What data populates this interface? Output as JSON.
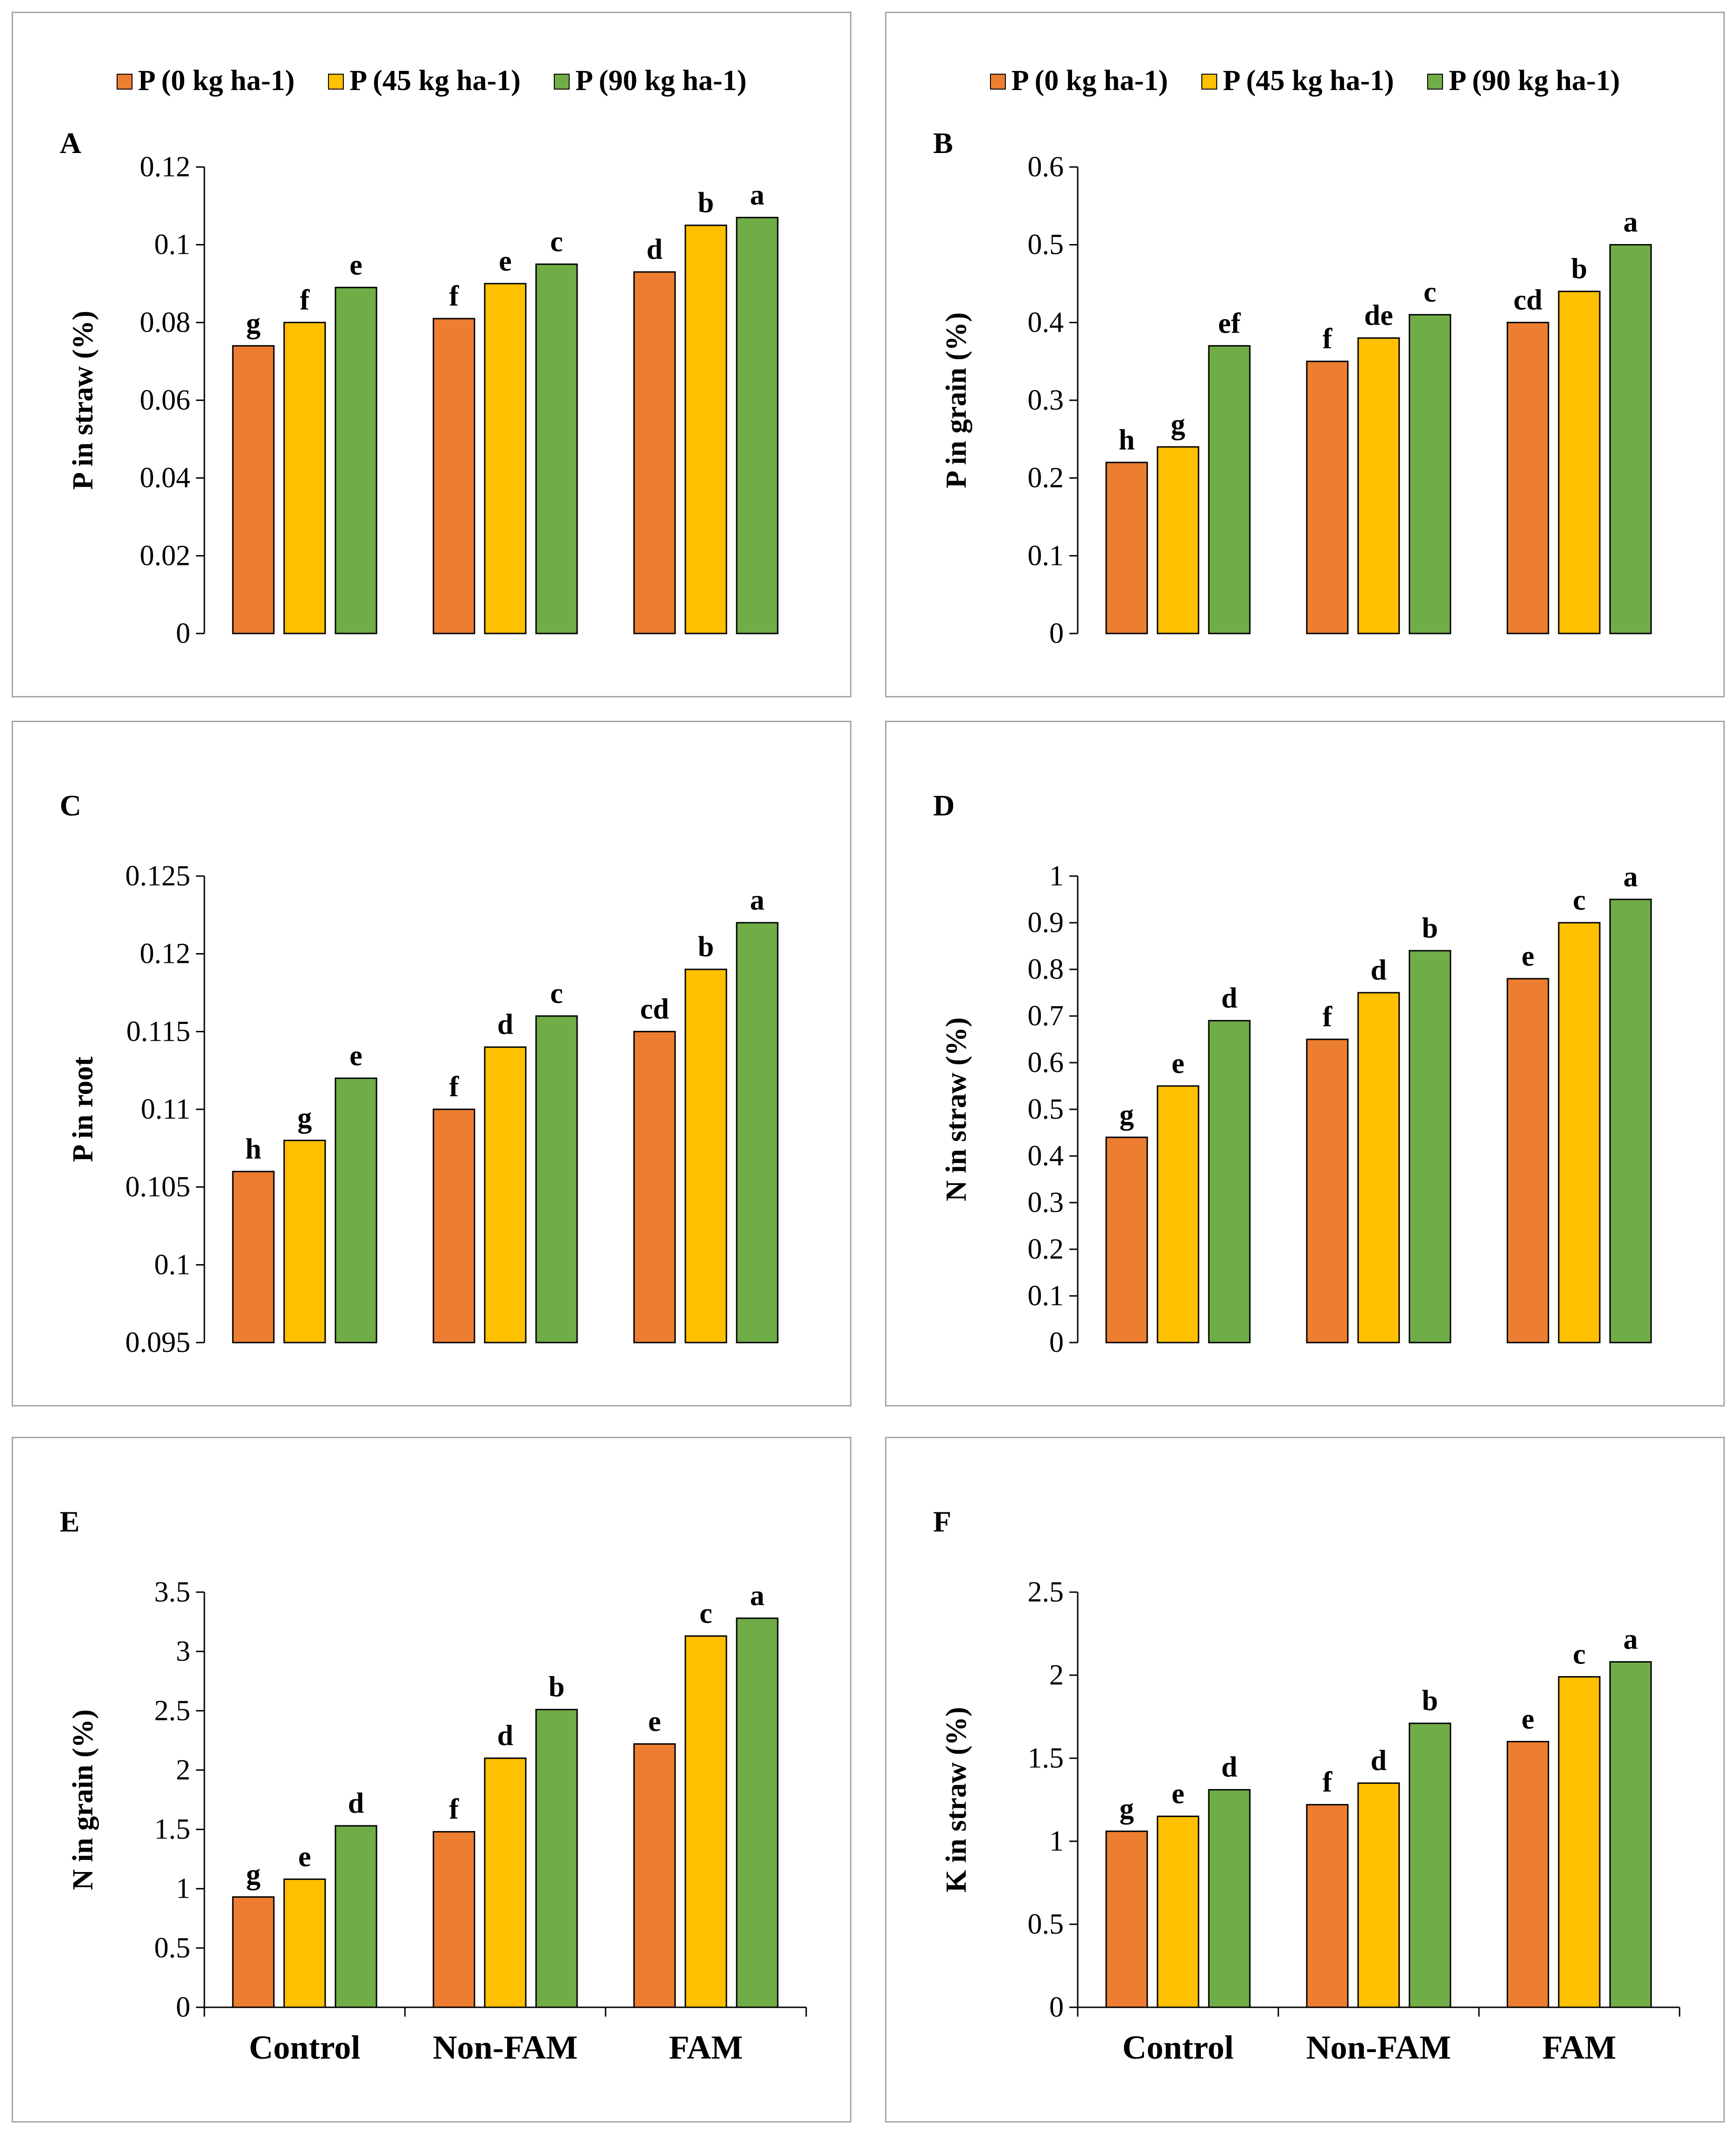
{
  "colors": {
    "p0": "#ED7D31",
    "p45": "#FFC000",
    "p90": "#70AD47"
  },
  "legend": [
    "P (0 kg ha-1)",
    "P (45 kg ha-1)",
    "P (90 kg ha-1)"
  ],
  "chart_data": [
    {
      "panel": "A",
      "type": "bar",
      "ylabel": "P in straw (%)",
      "ylim": [
        0,
        0.12
      ],
      "yticks": [
        "0",
        "0.02",
        "0.04",
        "0.06",
        "0.08",
        "0.1",
        "0.12"
      ],
      "categories": [
        "Control",
        "Non-FAM",
        "FAM"
      ],
      "show_categories": false,
      "show_legend": true,
      "series": [
        {
          "name": "P (0 kg ha-1)",
          "values": [
            0.074,
            0.081,
            0.093
          ],
          "letters": [
            "g",
            "f",
            "d"
          ]
        },
        {
          "name": "P (45 kg ha-1)",
          "values": [
            0.08,
            0.09,
            0.105
          ],
          "letters": [
            "f",
            "e",
            "b"
          ]
        },
        {
          "name": "P (90 kg ha-1)",
          "values": [
            0.089,
            0.095,
            0.107
          ],
          "letters": [
            "e",
            "c",
            "a"
          ]
        }
      ]
    },
    {
      "panel": "B",
      "type": "bar",
      "ylabel": "P in grain (%)",
      "ylim": [
        0,
        0.6
      ],
      "yticks": [
        "0",
        "0.1",
        "0.2",
        "0.3",
        "0.4",
        "0.5",
        "0.6"
      ],
      "categories": [
        "Control",
        "Non-FAM",
        "FAM"
      ],
      "show_categories": false,
      "show_legend": true,
      "series": [
        {
          "name": "P (0 kg ha-1)",
          "values": [
            0.22,
            0.35,
            0.4
          ],
          "letters": [
            "h",
            "f",
            "cd"
          ]
        },
        {
          "name": "P (45 kg ha-1)",
          "values": [
            0.24,
            0.38,
            0.44
          ],
          "letters": [
            "g",
            "de",
            "b"
          ]
        },
        {
          "name": "P (90 kg ha-1)",
          "values": [
            0.37,
            0.41,
            0.5
          ],
          "letters": [
            "ef",
            "c",
            "a"
          ]
        }
      ]
    },
    {
      "panel": "C",
      "type": "bar",
      "ylabel": "P in root",
      "ylim": [
        0.095,
        0.125
      ],
      "yticks": [
        "0.095",
        "0.1",
        "0.105",
        "0.11",
        "0.115",
        "0.12",
        "0.125"
      ],
      "categories": [
        "Control",
        "Non-FAM",
        "FAM"
      ],
      "show_categories": false,
      "show_legend": false,
      "series": [
        {
          "name": "P (0 kg ha-1)",
          "values": [
            0.106,
            0.11,
            0.115
          ],
          "letters": [
            "h",
            "f",
            "cd"
          ]
        },
        {
          "name": "P (45 kg ha-1)",
          "values": [
            0.108,
            0.114,
            0.119
          ],
          "letters": [
            "g",
            "d",
            "b"
          ]
        },
        {
          "name": "P (90 kg ha-1)",
          "values": [
            0.112,
            0.116,
            0.122
          ],
          "letters": [
            "e",
            "c",
            "a"
          ]
        }
      ]
    },
    {
      "panel": "D",
      "type": "bar",
      "ylabel": "N in straw (%)",
      "ylim": [
        0,
        1
      ],
      "yticks": [
        "0",
        "0.1",
        "0.2",
        "0.3",
        "0.4",
        "0.5",
        "0.6",
        "0.7",
        "0.8",
        "0.9",
        "1"
      ],
      "categories": [
        "Control",
        "Non-FAM",
        "FAM"
      ],
      "show_categories": false,
      "show_legend": false,
      "series": [
        {
          "name": "P (0 kg ha-1)",
          "values": [
            0.44,
            0.65,
            0.78
          ],
          "letters": [
            "g",
            "f",
            "e"
          ]
        },
        {
          "name": "P (45 kg ha-1)",
          "values": [
            0.55,
            0.75,
            0.9
          ],
          "letters": [
            "e",
            "d",
            "c"
          ]
        },
        {
          "name": "P (90 kg ha-1)",
          "values": [
            0.69,
            0.84,
            0.95
          ],
          "letters": [
            "d",
            "b",
            "a"
          ]
        }
      ]
    },
    {
      "panel": "E",
      "type": "bar",
      "ylabel": "N in grain (%)",
      "ylim": [
        0,
        3.5
      ],
      "yticks": [
        "0",
        "0.5",
        "1",
        "1.5",
        "2",
        "2.5",
        "3",
        "3.5"
      ],
      "categories": [
        "Control",
        "Non-FAM",
        "FAM"
      ],
      "show_categories": true,
      "show_legend": false,
      "series": [
        {
          "name": "P (0 kg ha-1)",
          "values": [
            0.93,
            1.48,
            2.22
          ],
          "letters": [
            "g",
            "f",
            "e"
          ]
        },
        {
          "name": "P (45 kg ha-1)",
          "values": [
            1.08,
            2.1,
            3.13
          ],
          "letters": [
            "e",
            "d",
            "c"
          ]
        },
        {
          "name": "P (90 kg ha-1)",
          "values": [
            1.53,
            2.51,
            3.28
          ],
          "letters": [
            "d",
            "b",
            "a"
          ]
        }
      ]
    },
    {
      "panel": "F",
      "type": "bar",
      "ylabel": "K in straw (%)",
      "ylim": [
        0,
        2.5
      ],
      "yticks": [
        "0",
        "0.5",
        "1",
        "1.5",
        "2",
        "2.5"
      ],
      "categories": [
        "Control",
        "Non-FAM",
        "FAM"
      ],
      "show_categories": true,
      "show_legend": false,
      "series": [
        {
          "name": "P (0 kg ha-1)",
          "values": [
            1.06,
            1.22,
            1.6
          ],
          "letters": [
            "g",
            "f",
            "e"
          ]
        },
        {
          "name": "P (45 kg ha-1)",
          "values": [
            1.15,
            1.35,
            1.99
          ],
          "letters": [
            "e",
            "d",
            "c"
          ]
        },
        {
          "name": "P (90 kg ha-1)",
          "values": [
            1.31,
            1.71,
            2.08
          ],
          "letters": [
            "d",
            "b",
            "a"
          ]
        }
      ]
    }
  ]
}
